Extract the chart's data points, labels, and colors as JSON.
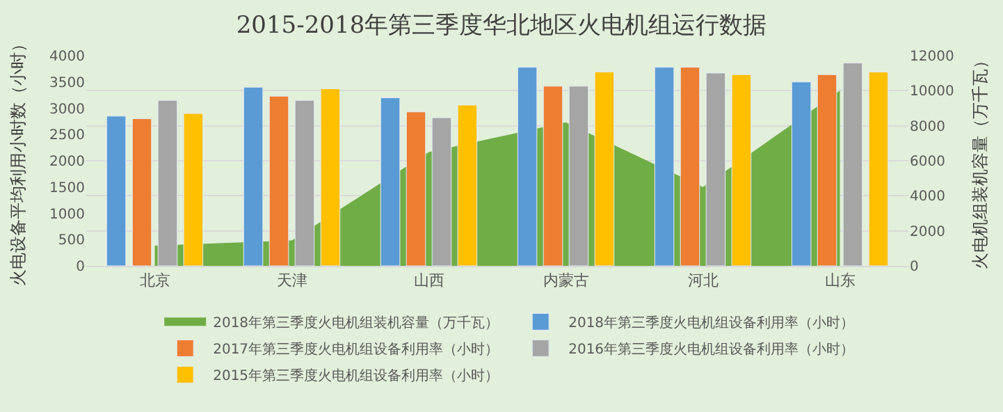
{
  "chart_data": {
    "type": "bar",
    "title": "2015-2018年第三季度华北地区火电机组运行数据",
    "ylabel": "火电设备平均利用小时数（小时）",
    "y2label": "火电机组装机容量（万千瓦）",
    "categories": [
      "北京",
      "天津",
      "山西",
      "内蒙古",
      "河北",
      "山东"
    ],
    "series": [
      {
        "name": "2018年第三季度火电机组装机容量（万千瓦）",
        "type": "area",
        "axis": "y2",
        "color": "#70ad47",
        "values": [
          1150,
          1450,
          6500,
          8200,
          4500,
          10000
        ]
      },
      {
        "name": "2018年第三季度火电机组设备利用率（小时）",
        "color": "#5b9bd5",
        "values": [
          2850,
          3400,
          3200,
          3780,
          3780,
          3500
        ]
      },
      {
        "name": "2017年第三季度火电机组设备利用率（小时）",
        "color": "#ed7d31",
        "values": [
          2800,
          3230,
          2930,
          3420,
          3780,
          3640
        ]
      },
      {
        "name": "2016年第三季度火电机组设备利用率（小时）",
        "color": "#a5a5a5",
        "values": [
          3150,
          3150,
          2820,
          3420,
          3670,
          3860
        ]
      },
      {
        "name": "2015年第三季度火电机组设备利用率（小时）",
        "color": "#ffc000",
        "values": [
          2900,
          3370,
          3060,
          3690,
          3640,
          3690
        ]
      }
    ],
    "ylim": [
      0,
      4000
    ],
    "yticks": [
      0,
      500,
      1000,
      1500,
      2000,
      2500,
      3000,
      3500,
      4000
    ],
    "y2lim": [
      0,
      12000
    ],
    "y2ticks": [
      0,
      2000,
      4000,
      6000,
      8000,
      10000,
      12000
    ],
    "grid": "y",
    "legend": "bottom"
  }
}
